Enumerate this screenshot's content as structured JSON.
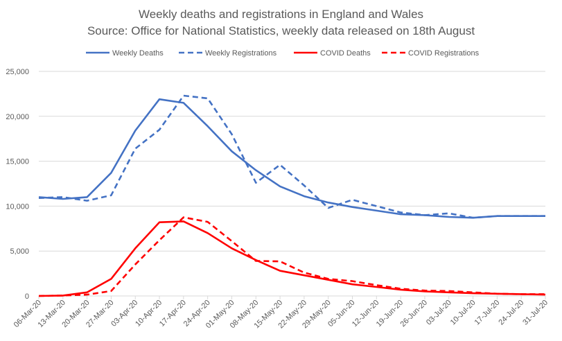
{
  "chart_data": {
    "type": "line",
    "title": "Weekly deaths and registrations in England and Wales",
    "subtitle": "Source: Office for National Statistics, weekly data released on 18th August",
    "legend_position": "top",
    "grid": {
      "horizontal": true,
      "vertical": false
    },
    "ylim": [
      0,
      25000
    ],
    "y_ticks": [
      "0",
      "5,000",
      "10,000",
      "15,000",
      "20,000",
      "25,000"
    ],
    "y_tick_values": [
      0,
      5000,
      10000,
      15000,
      20000,
      25000
    ],
    "x": [
      "06-Mar-20",
      "13-Mar-20",
      "20-Mar-20",
      "27-Mar-20",
      "03-Apr-20",
      "10-Apr-20",
      "17-Apr-20",
      "24-Apr-20",
      "01-May-20",
      "08-May-20",
      "15-May-20",
      "22-May-20",
      "29-May-20",
      "05-Jun-20",
      "12-Jun-20",
      "19-Jun-20",
      "26-Jun-20",
      "03-Jul-20",
      "10-Jul-20",
      "17-Jul-20",
      "24-Jul-20",
      "31-Jul-20"
    ],
    "series": [
      {
        "name": "Weekly Deaths",
        "color": "#4472c4",
        "style": "solid",
        "values": [
          11000,
          10800,
          11000,
          13700,
          18400,
          21900,
          21500,
          18900,
          16100,
          14000,
          12200,
          11100,
          10400,
          9900,
          9500,
          9100,
          9000,
          8800,
          8700,
          8900,
          8900,
          8900
        ]
      },
      {
        "name": "Weekly Registrations",
        "color": "#4472c4",
        "style": "dashed",
        "values": [
          10900,
          11000,
          10600,
          11200,
          16400,
          18500,
          22300,
          22000,
          18000,
          12600,
          14600,
          12300,
          9800,
          10700,
          10000,
          9300,
          9000,
          9200,
          8700,
          8900,
          8900,
          8900
        ]
      },
      {
        "name": "COVID Deaths",
        "color": "#ff0000",
        "style": "solid",
        "values": [
          0,
          50,
          400,
          1900,
          5300,
          8200,
          8300,
          7000,
          5300,
          4000,
          2800,
          2300,
          1800,
          1300,
          1000,
          700,
          500,
          400,
          300,
          250,
          200,
          150
        ]
      },
      {
        "name": "COVID Registrations",
        "color": "#ff0000",
        "style": "dashed",
        "values": [
          0,
          50,
          150,
          550,
          3500,
          6200,
          8750,
          8250,
          6100,
          3900,
          3850,
          2600,
          1900,
          1650,
          1200,
          800,
          600,
          550,
          400,
          250,
          200,
          200
        ]
      }
    ]
  }
}
